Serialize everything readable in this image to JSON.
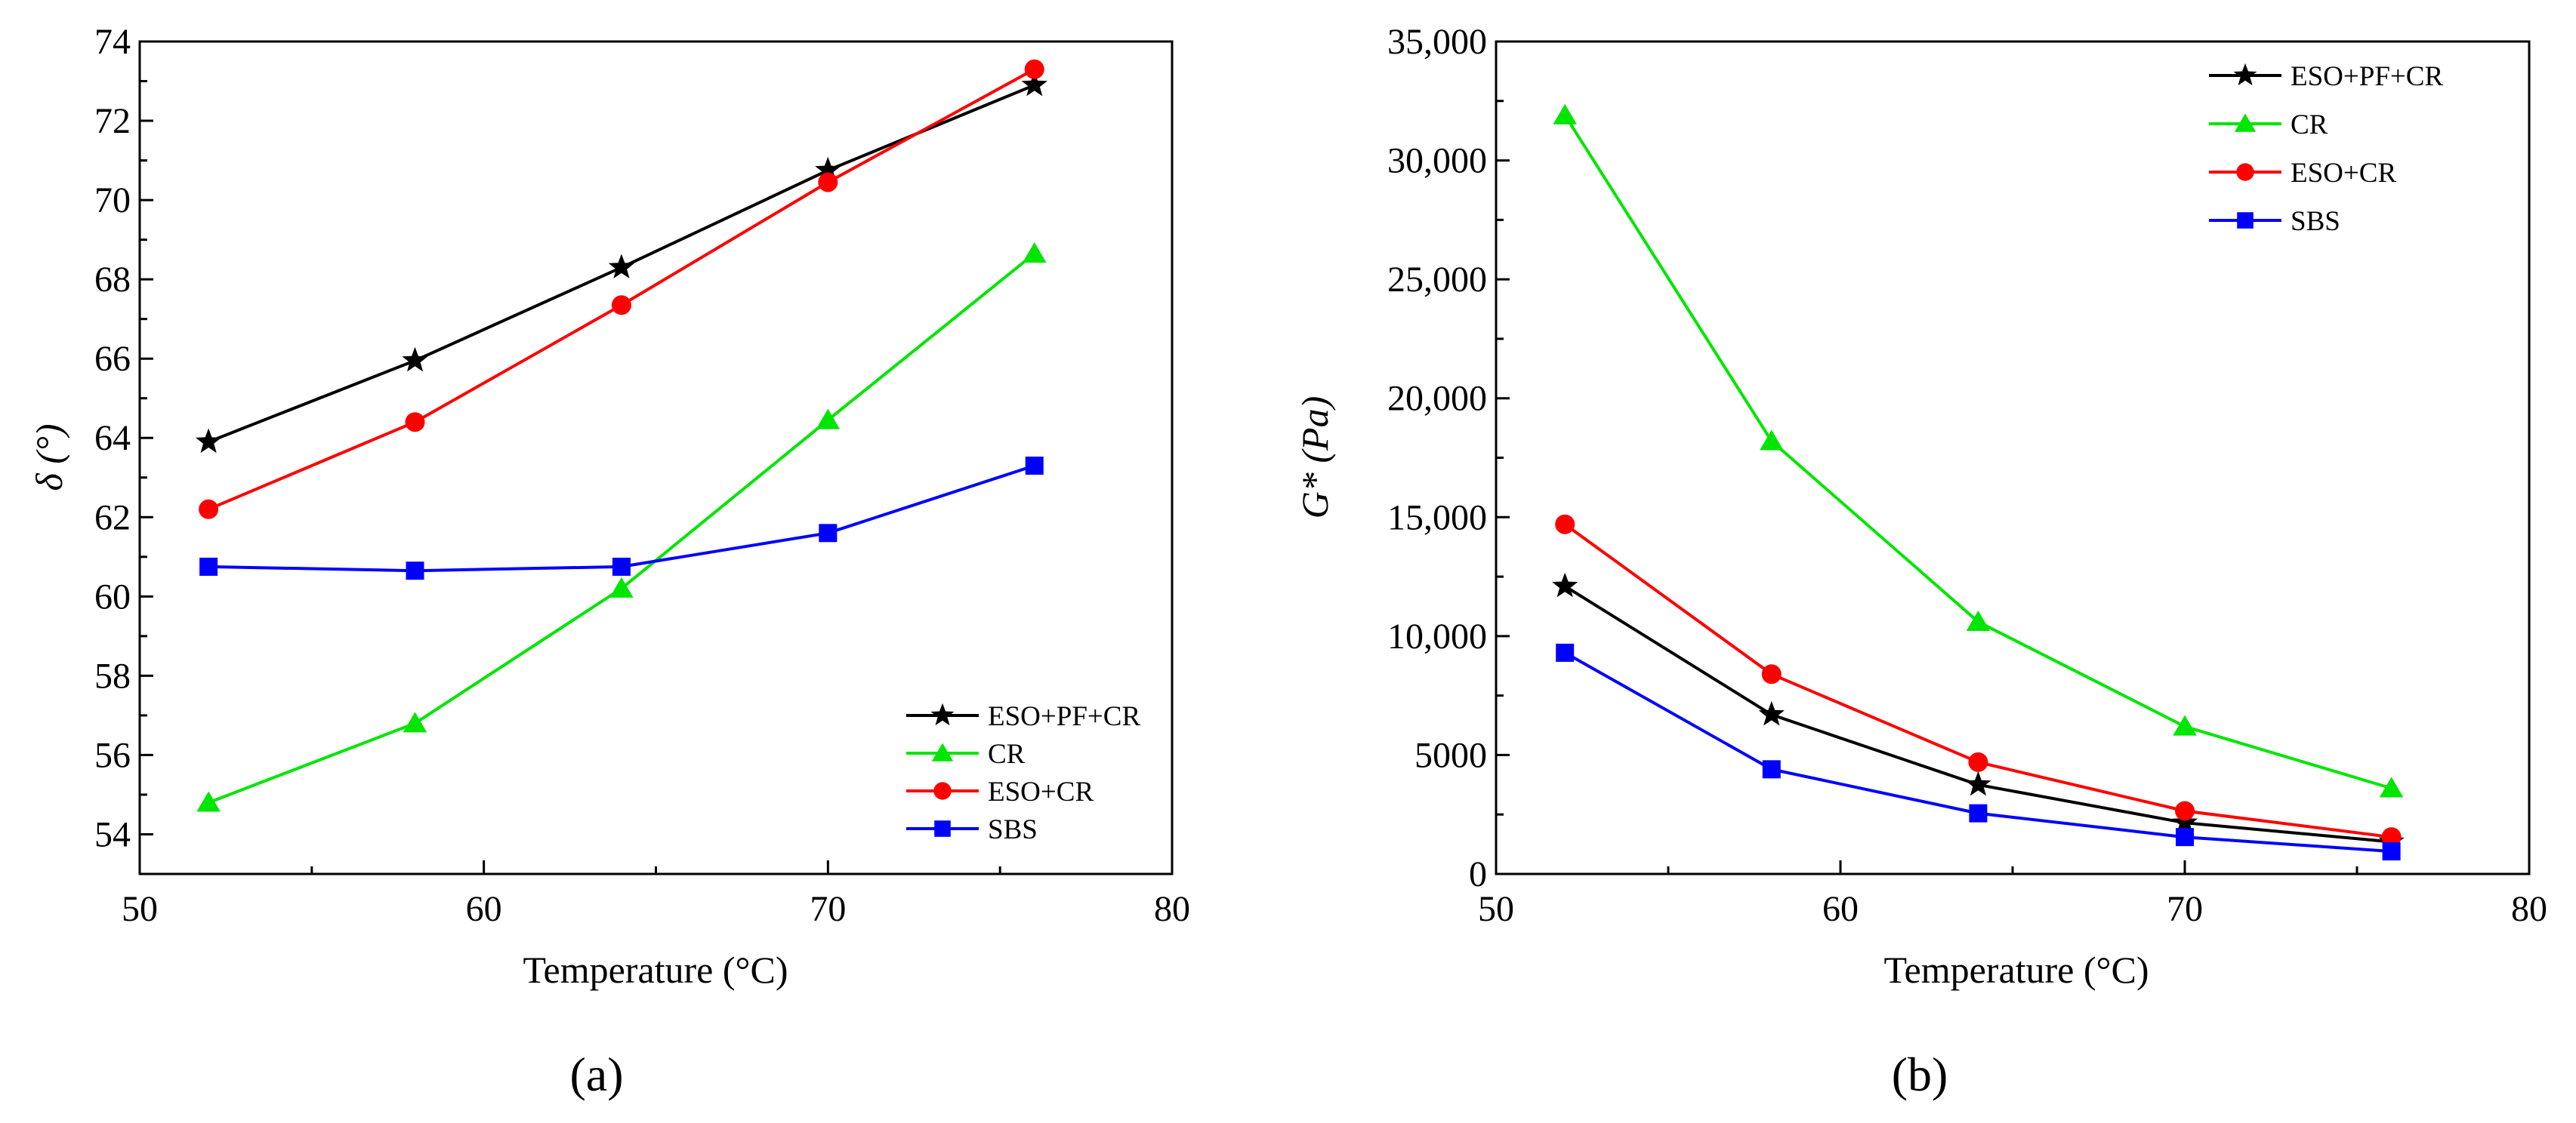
{
  "chart_data": [
    {
      "panel": "a",
      "panel_label": "(a)",
      "type": "line",
      "xlabel": "Temperature (°C)",
      "ylabel": "δ (°)",
      "xlim": [
        50,
        80
      ],
      "ylim": [
        53,
        74
      ],
      "xticks": [
        50,
        60,
        70,
        80
      ],
      "yticks": [
        54,
        56,
        58,
        60,
        62,
        64,
        66,
        68,
        70,
        72,
        74
      ],
      "x": [
        52,
        58,
        64,
        70,
        76
      ],
      "legend_position": "bottom-right",
      "series": [
        {
          "name": "ESO+PF+CR",
          "color": "#000000",
          "marker": "star",
          "values": [
            63.9,
            65.95,
            68.3,
            70.75,
            72.9
          ]
        },
        {
          "name": "CR",
          "color": "#00e600",
          "marker": "triangle",
          "values": [
            54.8,
            56.8,
            60.2,
            64.45,
            68.65
          ]
        },
        {
          "name": "ESO+CR",
          "color": "#ff0000",
          "marker": "circle",
          "values": [
            62.2,
            64.4,
            67.35,
            70.45,
            73.3
          ]
        },
        {
          "name": "SBS",
          "color": "#0000ff",
          "marker": "square",
          "values": [
            60.75,
            60.65,
            60.75,
            61.6,
            63.3
          ]
        }
      ]
    },
    {
      "panel": "b",
      "panel_label": "(b)",
      "type": "line",
      "xlabel": "Temperature (°C)",
      "ylabel": "G* (Pa)",
      "xlim": [
        50,
        80
      ],
      "ylim": [
        0,
        35000
      ],
      "xticks": [
        50,
        60,
        70,
        80
      ],
      "yticks": [
        0,
        5000,
        10000,
        15000,
        20000,
        25000,
        30000,
        35000
      ],
      "ytick_labels": [
        "0",
        "5000",
        "10,000",
        "15,000",
        "20,000",
        "25,000",
        "30,000",
        "35,000"
      ],
      "x": [
        52,
        58,
        64,
        70,
        76
      ],
      "legend_position": "top-right",
      "series": [
        {
          "name": "ESO+PF+CR",
          "color": "#000000",
          "marker": "star",
          "values": [
            12100,
            6700,
            3750,
            2150,
            1350
          ]
        },
        {
          "name": "CR",
          "color": "#00e600",
          "marker": "triangle",
          "values": [
            31900,
            18200,
            10600,
            6200,
            3600
          ]
        },
        {
          "name": "ESO+CR",
          "color": "#ff0000",
          "marker": "circle",
          "values": [
            14700,
            8400,
            4700,
            2650,
            1550
          ]
        },
        {
          "name": "SBS",
          "color": "#0000ff",
          "marker": "square",
          "values": [
            9300,
            4400,
            2550,
            1550,
            950
          ]
        }
      ]
    }
  ]
}
